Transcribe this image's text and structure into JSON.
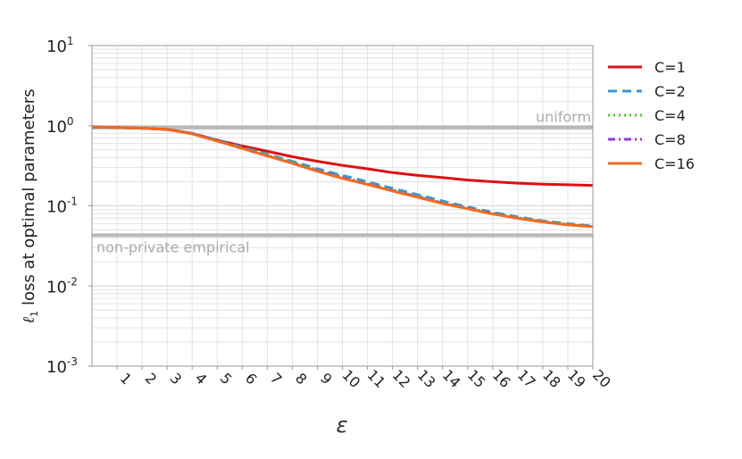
{
  "chart_data": {
    "type": "line",
    "xlabel": "ε",
    "ylabel": "loss at optimal parameters",
    "ylabel_prefix": "ℓ",
    "ylabel_prefix_sub": "1",
    "yscale": "log",
    "ylim": [
      0.001,
      10
    ],
    "xlim": [
      0,
      20
    ],
    "grid": true,
    "legend_position": "right",
    "x_ticks": [
      "1",
      "2",
      "3",
      "4",
      "5",
      "6",
      "7",
      "8",
      "9",
      "10",
      "11",
      "12",
      "13",
      "14",
      "15",
      "16",
      "17",
      "18",
      "19",
      "20"
    ],
    "y_ticks": [
      {
        "base": "10",
        "exp": "-3"
      },
      {
        "base": "10",
        "exp": "-2"
      },
      {
        "base": "10",
        "exp": "-1"
      },
      {
        "base": "10",
        "exp": "0"
      },
      {
        "base": "10",
        "exp": "1"
      }
    ],
    "reference_lines": [
      {
        "label": "uniform",
        "value": 0.95
      },
      {
        "label": "non-private empirical",
        "value": 0.043
      }
    ],
    "x": [
      0,
      1,
      2,
      3,
      4,
      5,
      6,
      7,
      8,
      9,
      10,
      11,
      12,
      13,
      14,
      15,
      16,
      17,
      18,
      19,
      20
    ],
    "series": [
      {
        "name": "C=1",
        "color": "#dd1111",
        "dash": "solid",
        "values": [
          0.96,
          0.95,
          0.93,
          0.9,
          0.8,
          0.66,
          0.56,
          0.48,
          0.41,
          0.36,
          0.32,
          0.29,
          0.26,
          0.24,
          0.225,
          0.21,
          0.2,
          0.192,
          0.186,
          0.183,
          0.18
        ]
      },
      {
        "name": "C=2",
        "color": "#3399dd",
        "dash": "dashed",
        "values": [
          0.96,
          0.95,
          0.93,
          0.9,
          0.8,
          0.66,
          0.54,
          0.44,
          0.36,
          0.29,
          0.24,
          0.2,
          0.165,
          0.138,
          0.115,
          0.097,
          0.083,
          0.073,
          0.065,
          0.06,
          0.056
        ]
      },
      {
        "name": "C=4",
        "color": "#44cc22",
        "dash": "dotted",
        "values": [
          0.96,
          0.95,
          0.93,
          0.9,
          0.8,
          0.65,
          0.53,
          0.43,
          0.35,
          0.28,
          0.23,
          0.19,
          0.158,
          0.132,
          0.11,
          0.094,
          0.081,
          0.071,
          0.064,
          0.059,
          0.055
        ]
      },
      {
        "name": "C=8",
        "color": "#9933dd",
        "dash": "dashdot",
        "values": [
          0.96,
          0.95,
          0.93,
          0.9,
          0.8,
          0.65,
          0.52,
          0.42,
          0.34,
          0.275,
          0.225,
          0.187,
          0.155,
          0.13,
          0.108,
          0.093,
          0.08,
          0.07,
          0.063,
          0.058,
          0.055
        ]
      },
      {
        "name": "C=16",
        "color": "#f26b1d",
        "dash": "solid",
        "values": [
          0.96,
          0.95,
          0.93,
          0.9,
          0.79,
          0.64,
          0.52,
          0.42,
          0.34,
          0.27,
          0.22,
          0.185,
          0.153,
          0.128,
          0.107,
          0.092,
          0.079,
          0.07,
          0.063,
          0.058,
          0.055
        ]
      }
    ]
  }
}
